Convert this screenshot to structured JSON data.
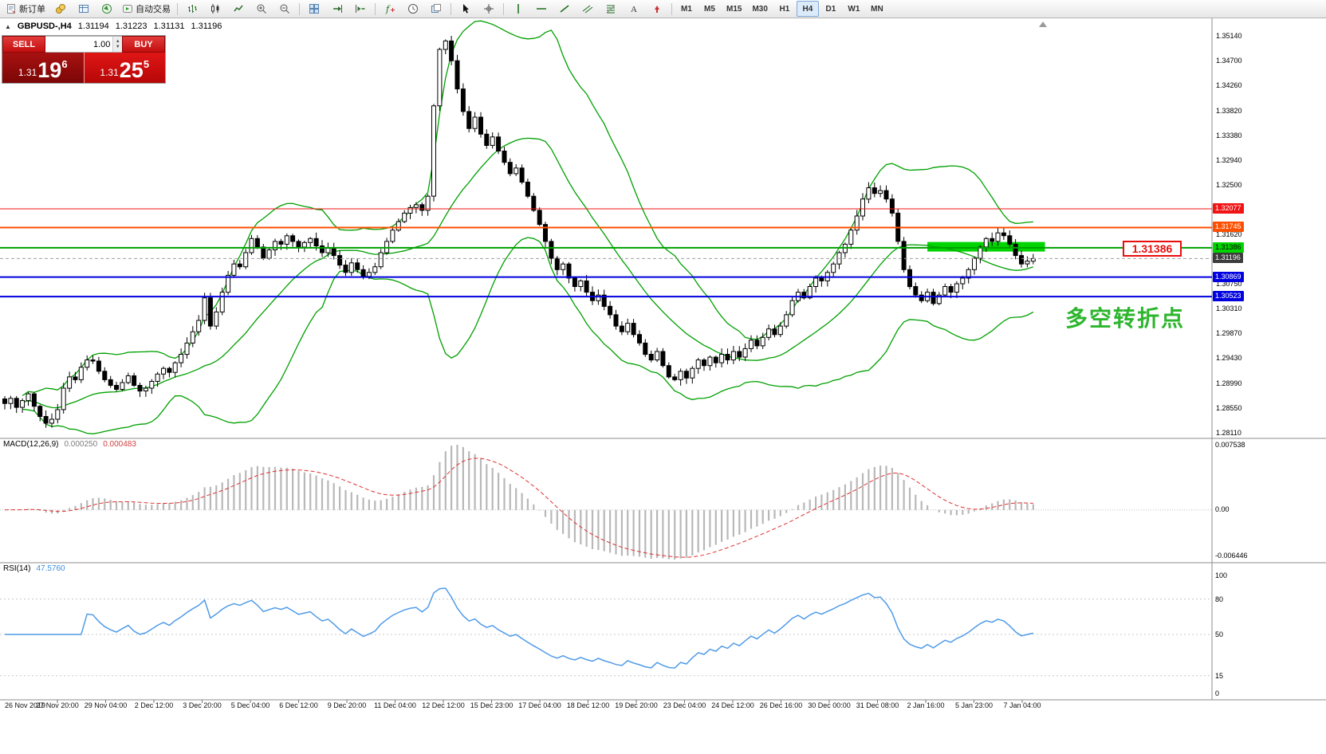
{
  "toolbar": {
    "buttons": [
      {
        "name": "new-order-button",
        "icon": "new-order-icon",
        "label": "新订单"
      },
      {
        "name": "market-watch-button",
        "icon": "market-watch-icon"
      },
      {
        "name": "data-window-button",
        "icon": "data-window-icon"
      },
      {
        "name": "navigator-button",
        "icon": "navigator-icon"
      },
      {
        "name": "autotrading-button",
        "icon": "autotrading-icon",
        "label": "自动交易"
      },
      {
        "sep": true
      },
      {
        "name": "bar-chart-button",
        "icon": "bar-chart-icon"
      },
      {
        "name": "candlestick-chart-button",
        "icon": "candlestick-icon"
      },
      {
        "name": "line-chart-button",
        "icon": "line-chart-icon"
      },
      {
        "name": "zoom-in-button",
        "icon": "zoom-in-icon"
      },
      {
        "name": "zoom-out-button",
        "icon": "zoom-out-icon"
      },
      {
        "sep": true
      },
      {
        "name": "tile-windows-button",
        "icon": "tile-windows-icon"
      },
      {
        "name": "auto-scroll-button",
        "icon": "auto-scroll-icon"
      },
      {
        "name": "chart-shift-button",
        "icon": "chart-shift-icon"
      },
      {
        "sep": true
      },
      {
        "name": "indicators-button",
        "icon": "indicators-icon"
      },
      {
        "name": "periods-button",
        "icon": "periods-icon"
      },
      {
        "name": "templates-button",
        "icon": "templates-icon"
      },
      {
        "sep": true
      },
      {
        "name": "cursor-button",
        "icon": "cursor-icon"
      },
      {
        "name": "crosshair-button",
        "icon": "crosshair-icon"
      },
      {
        "sep": true
      },
      {
        "name": "vertical-line-button",
        "icon": "vertical-line-icon"
      },
      {
        "name": "horizontal-line-button",
        "icon": "horizontal-line-icon"
      },
      {
        "name": "trendline-button",
        "icon": "trendline-icon"
      },
      {
        "name": "channel-button",
        "icon": "channel-icon"
      },
      {
        "name": "fibonacci-button",
        "icon": "fibonacci-icon"
      },
      {
        "name": "text-button",
        "icon": "text-icon"
      },
      {
        "name": "arrows-button",
        "icon": "arrows-icon"
      },
      {
        "sep": true
      }
    ],
    "timeframes": [
      "M1",
      "M5",
      "M15",
      "M30",
      "H1",
      "H4",
      "D1",
      "W1",
      "MN"
    ],
    "active_timeframe": "H4"
  },
  "quote": {
    "collapse_icon": "▲",
    "symbol": "GBPUSD-,H4",
    "open": "1.31194",
    "high": "1.31223",
    "low": "1.31131",
    "close": "1.31196"
  },
  "trade_panel": {
    "sell_label": "SELL",
    "buy_label": "BUY",
    "volume": "1.00",
    "bid": {
      "prefix": "1.31",
      "big": "19",
      "sup": "6"
    },
    "ask": {
      "prefix": "1.31",
      "big": "25",
      "sup": "5"
    }
  },
  "macd": {
    "label": "MACD(12,26,9)",
    "value_main": "0.000250",
    "value_signal": "0.000483",
    "scale_top": "0.007538",
    "scale_zero": "0.00",
    "scale_bottom": "-0.006446"
  },
  "rsi": {
    "label": "RSI(14)",
    "value": "47.5760",
    "scale_labels": [
      "100",
      "80",
      "50",
      "15",
      "0"
    ],
    "levels": [
      80,
      50,
      15
    ]
  },
  "annotations": {
    "price_box_label": "1.31386",
    "note_text": "多空转折点"
  },
  "chart_data": {
    "type": "candlestick",
    "symbol": "GBPUSD-",
    "timeframe": "H4",
    "price_range": {
      "top": 1.3514,
      "bottom": 1.2811
    },
    "scale_divisor": 100000,
    "closes": [
      128630,
      128720,
      128560,
      128680,
      128800,
      128580,
      128400,
      128280,
      128350,
      128520,
      128900,
      129100,
      129050,
      129270,
      129400,
      129380,
      129200,
      129050,
      128950,
      128880,
      129000,
      129120,
      128950,
      128850,
      128900,
      129020,
      129150,
      129250,
      129180,
      129350,
      129500,
      129700,
      129900,
      130100,
      130500,
      130000,
      130250,
      130600,
      130900,
      131100,
      131050,
      131300,
      131550,
      131400,
      131200,
      131350,
      131500,
      131450,
      131600,
      131500,
      131400,
      131480,
      131550,
      131420,
      131300,
      131380,
      131250,
      131080,
      130950,
      131120,
      131000,
      130880,
      130950,
      131050,
      131300,
      131500,
      131700,
      131850,
      132000,
      132100,
      132150,
      132050,
      132300,
      133900,
      134900,
      135050,
      134700,
      134200,
      133800,
      133500,
      133700,
      133400,
      133200,
      133350,
      133100,
      132900,
      132700,
      132800,
      132550,
      132300,
      132050,
      131800,
      131500,
      131200,
      131000,
      131100,
      130850,
      130700,
      130800,
      130600,
      130450,
      130550,
      130350,
      130200,
      130000,
      129900,
      130050,
      129850,
      129700,
      129500,
      129400,
      129550,
      129300,
      129100,
      129050,
      129200,
      129080,
      129250,
      129400,
      129300,
      129450,
      129350,
      129500,
      129400,
      129550,
      129450,
      129600,
      129750,
      129650,
      129800,
      129950,
      129850,
      130000,
      130200,
      130450,
      130600,
      130500,
      130700,
      130850,
      130800,
      130950,
      131100,
      131300,
      131450,
      131700,
      131950,
      132250,
      132450,
      132350,
      132400,
      132250,
      132000,
      131500,
      131000,
      130700,
      130550,
      130450,
      130600,
      130400,
      130550,
      130700,
      130600,
      130750,
      130850,
      131000,
      131200,
      131400,
      131550,
      131500,
      131650,
      131600,
      131450,
      131250,
      131100,
      131150,
      131196
    ],
    "bollinger": {
      "period": 20,
      "deviation": 2,
      "color": "#00a000"
    },
    "levels": [
      {
        "price": 1.32077,
        "label": "1.32077",
        "line_color": "#f01414",
        "tag_bg": "#f01414",
        "tag_fg": "#ffffff",
        "width": 1,
        "style": "solid"
      },
      {
        "price": 1.31745,
        "label": "1.31745",
        "line_color": "#ff4f00",
        "tag_bg": "#ff4f00",
        "tag_fg": "#ffffff",
        "width": 2,
        "style": "solid"
      },
      {
        "price": 1.31386,
        "label": "1.31386",
        "line_color": "#00a000",
        "tag_bg": "#00d500",
        "tag_fg": "#000000",
        "width": 2,
        "style": "solid"
      },
      {
        "price": 1.31196,
        "label": "1.31196",
        "line_color": "#a0a0a0",
        "tag_bg": "#3c3c3c",
        "tag_fg": "#ffffff",
        "width": 1,
        "style": "dash"
      },
      {
        "price": 1.30869,
        "label": "1.30869",
        "line_color": "#0000e0",
        "tag_bg": "#0000e0",
        "tag_fg": "#ffffff",
        "width": 2,
        "style": "solid"
      },
      {
        "price": 1.30523,
        "label": "1.30523",
        "line_color": "#0000e0",
        "tag_bg": "#0000e0",
        "tag_fg": "#ffffff",
        "width": 2,
        "style": "solid"
      }
    ],
    "highlight_zone": {
      "price_top": 1.3149,
      "price_bottom": 1.3132,
      "start_index": 157,
      "end_index": 177,
      "color": "#00d500"
    },
    "price_axis_labels": [
      "1.35140",
      "1.34700",
      "1.34260",
      "1.33820",
      "1.33380",
      "1.32940",
      "1.32500",
      "1.31620",
      "1.30750",
      "1.30310",
      "1.29870",
      "1.29430",
      "1.28990",
      "1.28550",
      "1.28110"
    ],
    "time_axis_labels": [
      "26 Nov 2019",
      "27 Nov 20:00",
      "29 Nov 04:00",
      "2 Dec 12:00",
      "3 Dec 20:00",
      "5 Dec 04:00",
      "6 Dec 12:00",
      "9 Dec 20:00",
      "11 Dec 04:00",
      "12 Dec 12:00",
      "15 Dec 23:00",
      "17 Dec 04:00",
      "18 Dec 12:00",
      "19 Dec 20:00",
      "23 Dec 04:00",
      "24 Dec 12:00",
      "26 Dec 16:00",
      "30 Dec 00:00",
      "31 Dec 08:00",
      "2 Jan 16:00",
      "5 Jan 23:00",
      "7 Jan 04:00"
    ]
  }
}
